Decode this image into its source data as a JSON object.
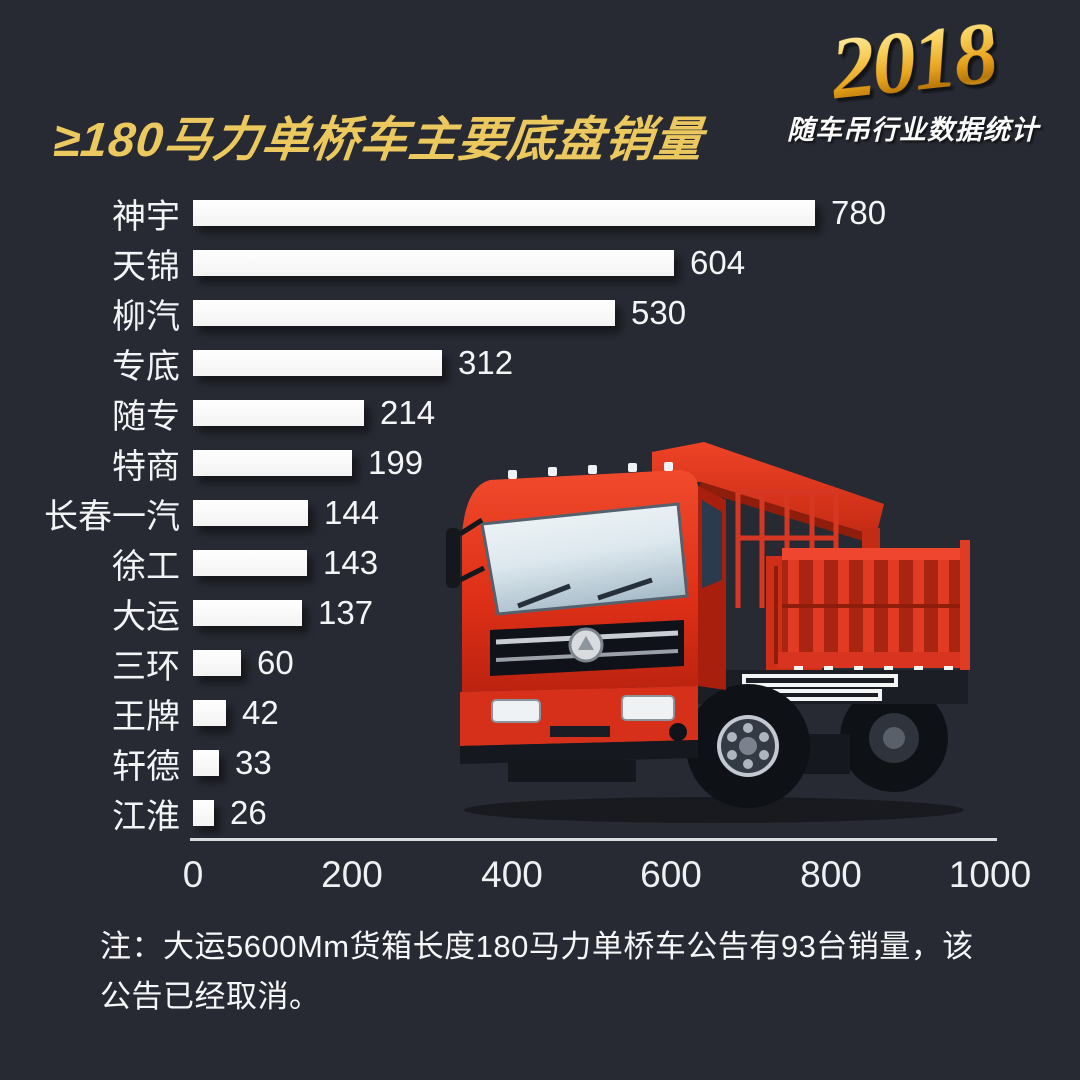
{
  "header": {
    "title": "≥180马力单桥车主要底盘销量",
    "badge_year": "2018",
    "badge_subtitle": "随车吊行业数据统计"
  },
  "chart_data": {
    "type": "bar",
    "orientation": "horizontal",
    "title": "≥180马力单桥车主要底盘销量",
    "categories": [
      "神宇",
      "天锦",
      "柳汽",
      "专底",
      "随专",
      "特商",
      "长春一汽",
      "徐工",
      "大运",
      "三环",
      "王牌",
      "轩德",
      "江淮"
    ],
    "values": [
      780,
      604,
      530,
      312,
      214,
      199,
      144,
      143,
      137,
      60,
      42,
      33,
      26
    ],
    "x_ticks": [
      "0",
      "200",
      "400",
      "600",
      "800",
      "1000"
    ],
    "x_tick_values": [
      0,
      200,
      400,
      600,
      800,
      1000
    ],
    "xlim": [
      0,
      1000
    ],
    "value_labels_shown": true,
    "grid": false,
    "bar_color": "#f7f8f8",
    "background_color": "#272a33"
  },
  "footer": {
    "note": "注：大运5600Mm货箱长度180马力单桥车公告有93台销量，该公告已经取消。"
  },
  "illustration": {
    "name": "red-crane-truck",
    "primary_color": "#d93420"
  },
  "colors": {
    "background": "#272a33",
    "title_gold": "#ecc95e",
    "text_white": "#f2f4f6",
    "axis_line": "#e8eaee"
  }
}
